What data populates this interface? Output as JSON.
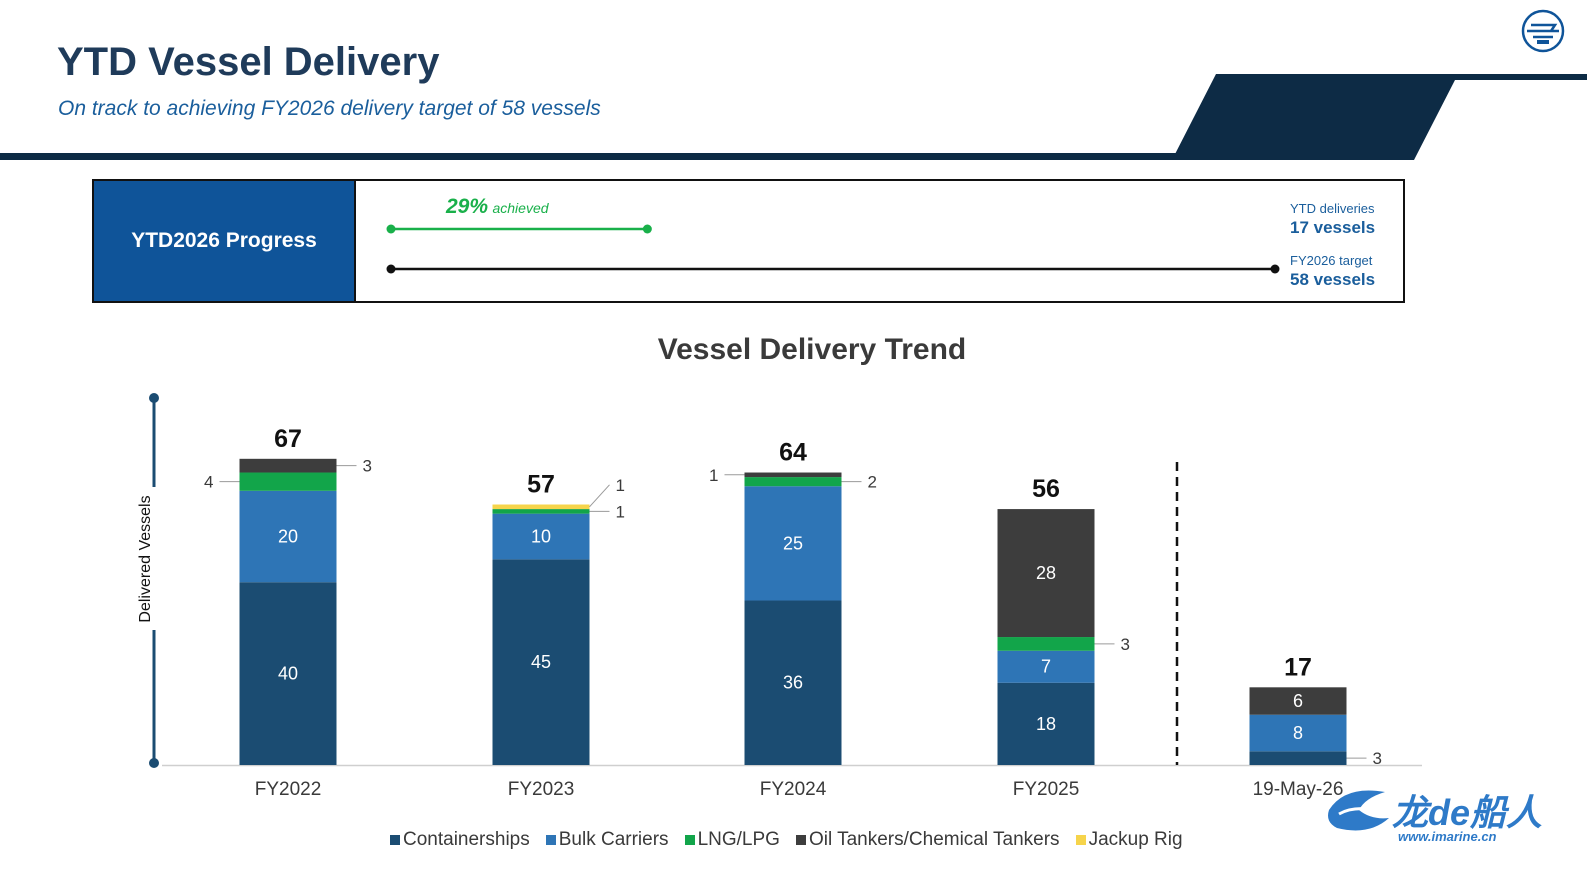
{
  "header": {
    "title": "YTD Vessel Delivery",
    "subtitle": "On track to achieving FY2026 delivery target of 58 vessels",
    "band_color": "#0d2b45"
  },
  "progress": {
    "label": "YTD2026 Progress",
    "percent_text": "29%",
    "achieved_text": "achieved",
    "fraction": 0.29,
    "ytd_label": "YTD deliveries",
    "ytd_value": "17 vessels",
    "target_label": "FY2026 target",
    "target_value": "58 vessels",
    "accent": "#19b04a"
  },
  "chart_data": {
    "type": "bar",
    "stacked": true,
    "title": "Vessel Delivery Trend",
    "ylabel": "Delivered Vessels",
    "xlabel": "",
    "categories": [
      "FY2022",
      "FY2023",
      "FY2024",
      "FY2025",
      "19-May-26"
    ],
    "totals": [
      67,
      57,
      64,
      56,
      17
    ],
    "ylim": [
      0,
      67
    ],
    "series": [
      {
        "name": "Containerships",
        "color": "#1b4c72",
        "values": [
          40,
          45,
          36,
          18,
          3
        ]
      },
      {
        "name": "Bulk Carriers",
        "color": "#2e75b6",
        "values": [
          20,
          10,
          25,
          7,
          8
        ]
      },
      {
        "name": "LNG/LPG",
        "color": "#12a54a",
        "values": [
          4,
          1,
          2,
          3,
          0
        ]
      },
      {
        "name": "Oil Tankers/Chemical Tankers",
        "color": "#3d3d3d",
        "values": [
          3,
          0,
          1,
          28,
          6
        ]
      },
      {
        "name": "Jackup Rig",
        "color": "#f6d44b",
        "values": [
          0,
          1,
          0,
          0,
          0
        ]
      }
    ],
    "grid": false,
    "legend_position": "bottom"
  },
  "watermark": {
    "text_cn": "龙de船人",
    "url": "www.imarine.cn"
  }
}
